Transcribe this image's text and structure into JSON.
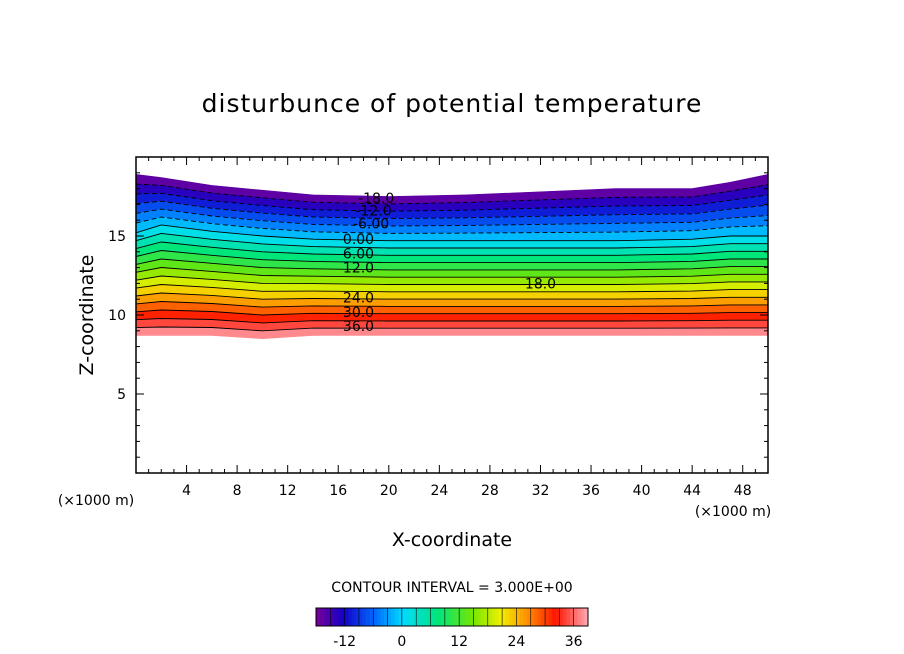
{
  "chart_data": {
    "type": "heatmap",
    "title": "disturbunce of potential temperature",
    "xlabel": "X-coordinate",
    "ylabel": "Z-coordinate",
    "x_unit": "(×1000 m)",
    "y_unit": "(×1000 m)",
    "xlim": [
      0,
      50
    ],
    "ylim": [
      0,
      20
    ],
    "x_ticks": [
      4,
      8,
      12,
      16,
      20,
      24,
      28,
      32,
      36,
      40,
      44,
      48
    ],
    "y_ticks": [
      5,
      10,
      15
    ],
    "contour_interval_text": "CONTOUR INTERVAL = 3.000E+00",
    "field": {
      "value_min": -18,
      "value_max": 39,
      "interval": 3,
      "columns": [
        {
          "x": 0,
          "z_bottom": 8.7,
          "z_top": 18.9,
          "z_zero": 15.2
        },
        {
          "x": 2,
          "z_bottom": 8.7,
          "z_top": 18.7,
          "z_zero": 15.7
        },
        {
          "x": 6,
          "z_bottom": 8.7,
          "z_top": 18.2,
          "z_zero": 15.3
        },
        {
          "x": 10,
          "z_bottom": 8.5,
          "z_top": 17.9,
          "z_zero": 15.0
        },
        {
          "x": 14,
          "z_bottom": 8.7,
          "z_top": 17.6,
          "z_zero": 14.8
        },
        {
          "x": 20,
          "z_bottom": 8.7,
          "z_top": 17.5,
          "z_zero": 14.7
        },
        {
          "x": 26,
          "z_bottom": 8.7,
          "z_top": 17.6,
          "z_zero": 14.7
        },
        {
          "x": 32,
          "z_bottom": 8.7,
          "z_top": 17.8,
          "z_zero": 14.7
        },
        {
          "x": 38,
          "z_bottom": 8.7,
          "z_top": 18.0,
          "z_zero": 14.7
        },
        {
          "x": 44,
          "z_bottom": 8.7,
          "z_top": 18.0,
          "z_zero": 14.8
        },
        {
          "x": 47,
          "z_bottom": 8.7,
          "z_top": 18.4,
          "z_zero": 15.0
        },
        {
          "x": 50,
          "z_bottom": 8.7,
          "z_top": 18.9,
          "z_zero": 15.0
        }
      ]
    },
    "contour_labels": [
      {
        "text": "-18.0",
        "x": 19.0,
        "z": 17.4
      },
      {
        "text": "-12.0",
        "x": 18.8,
        "z": 16.6
      },
      {
        "text": "-6.00",
        "x": 18.6,
        "z": 15.8
      },
      {
        "text": "0.00",
        "x": 17.6,
        "z": 14.8
      },
      {
        "text": "6.00",
        "x": 17.6,
        "z": 13.9
      },
      {
        "text": "12.0",
        "x": 17.6,
        "z": 13.0
      },
      {
        "text": "18.0",
        "x": 32.0,
        "z": 12.0
      },
      {
        "text": "24.0",
        "x": 17.6,
        "z": 11.1
      },
      {
        "text": "30.0",
        "x": 17.6,
        "z": 10.2
      },
      {
        "text": "36.0",
        "x": 17.6,
        "z": 9.3
      }
    ],
    "colorbar": {
      "range": [
        -18,
        39
      ],
      "ticks": [
        -12,
        0,
        12,
        24,
        36
      ]
    },
    "grid": false
  }
}
